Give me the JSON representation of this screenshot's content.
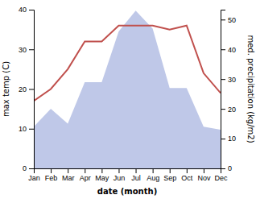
{
  "chart_data": {
    "type": "line",
    "xlabel": "date (month)",
    "ylabel": "max temp (C)",
    "y2label": "med. precipitation (kg/m2)",
    "categories": [
      "Jan",
      "Feb",
      "Mar",
      "Apr",
      "May",
      "Jun",
      "Jul",
      "Aug",
      "Sep",
      "Oct",
      "Nov",
      "Dec"
    ],
    "series": [
      {
        "type": "area",
        "axis": "y2",
        "color": "#bfc8e8",
        "values": [
          14,
          20,
          15,
          29,
          29,
          46,
          53,
          47,
          27,
          27,
          14,
          13
        ]
      },
      {
        "type": "line",
        "color": "#c0504d",
        "values": [
          17,
          20,
          25,
          32,
          32,
          36,
          36,
          36,
          35,
          36,
          24,
          19
        ]
      }
    ],
    "ylim": [
      0,
      40
    ],
    "yticks": [
      0,
      10,
      20,
      30,
      40
    ],
    "y2lim": [
      0,
      53.33
    ],
    "y2ticks": [
      0,
      10,
      20,
      30,
      40,
      50
    ],
    "grid": false
  }
}
